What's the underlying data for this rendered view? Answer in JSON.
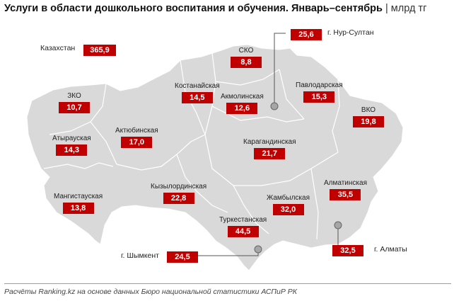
{
  "title": {
    "main": "Услуги в области дошкольного воспитания и обучения. Январь–сентябрь",
    "separator": "|",
    "unit": "млрд тг"
  },
  "total": {
    "label": "Казахстан",
    "value": "365,9"
  },
  "regions": {
    "sko": {
      "name": "СКО",
      "value": "8,8"
    },
    "kostanay": {
      "name": "Костанайская",
      "value": "14,5"
    },
    "akmola": {
      "name": "Акмолинская",
      "value": "12,6"
    },
    "pavlodar": {
      "name": "Павлодарская",
      "value": "15,3"
    },
    "zko": {
      "name": "ЗКО",
      "value": "10,7"
    },
    "vko": {
      "name": "ВКО",
      "value": "19,8"
    },
    "atyrau": {
      "name": "Атырауская",
      "value": "14,3"
    },
    "aktobe": {
      "name": "Актюбинская",
      "value": "17,0"
    },
    "karaganda": {
      "name": "Карагандинская",
      "value": "21,7"
    },
    "mangistau": {
      "name": "Мангистауская",
      "value": "13,8"
    },
    "kyzylorda": {
      "name": "Кызылординская",
      "value": "22,8"
    },
    "almaty_region": {
      "name": "Алматинская",
      "value": "35,5"
    },
    "zhambyl": {
      "name": "Жамбылская",
      "value": "32,0"
    },
    "turkestan": {
      "name": "Туркестанская",
      "value": "44,5"
    }
  },
  "cities": {
    "nur_sultan": {
      "name": "г. Нур-Султан",
      "value": "25,6"
    },
    "almaty": {
      "name": "г. Алматы",
      "value": "32,5"
    },
    "shymkent": {
      "name": "г. Шымкент",
      "value": "24,5"
    }
  },
  "colors": {
    "land": "#d9d9d9",
    "border": "#ffffff",
    "value_box": "#c00000",
    "city_marker": "#a6a6a6"
  },
  "source": "Расчёты Ranking.kz на основе данных Бюро национальной статистики АСПиР РК"
}
